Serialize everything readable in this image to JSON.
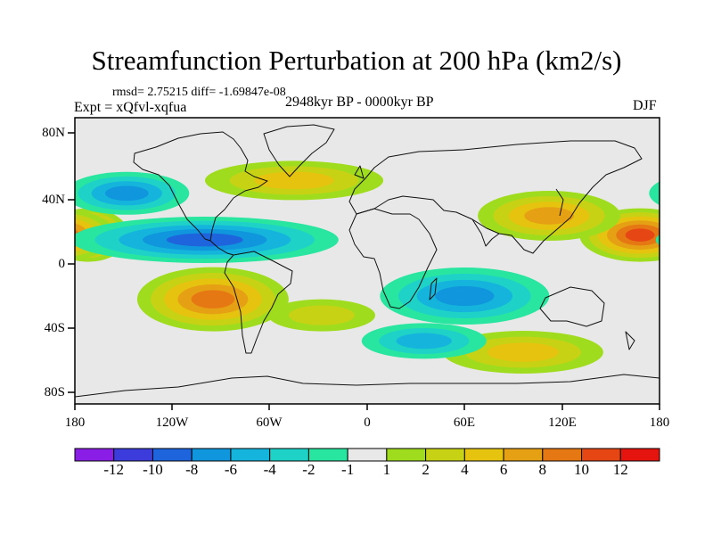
{
  "title": "Streamfunction Perturbation at 200 hPa (km2/s)",
  "stats_text": "rmsd= 2.75215 diff= -1.69847e-08",
  "experiment_label": "Expt = xQfvl-xqfua",
  "period_label": "2948kyr BP - 0000kyr BP",
  "season_label": "DJF",
  "axes": {
    "y_ticks": [
      "80N",
      "40N",
      "0",
      "40S",
      "80S"
    ],
    "x_ticks": [
      "180",
      "120W",
      "60W",
      "0",
      "60E",
      "120E",
      "180"
    ]
  },
  "colorbar": {
    "labels": [
      "-12",
      "-10",
      "-8",
      "-6",
      "-4",
      "-2",
      "-1",
      "1",
      "2",
      "4",
      "6",
      "8",
      "10",
      "12"
    ],
    "colors": [
      "#8a1ee6",
      "#3c3cdc",
      "#1e64dc",
      "#0f96dc",
      "#14b4dc",
      "#1ed2c8",
      "#28e6a0",
      "#e8e8e8",
      "#a0dc1e",
      "#c8d214",
      "#e6c30f",
      "#e6a014",
      "#e67814",
      "#e64614",
      "#e6140f"
    ]
  },
  "map_units": "km2/s",
  "anomaly_features": [
    {
      "id": "pac-east-pos",
      "lon": -172,
      "lat": 18,
      "value": 10
    },
    {
      "id": "pac-west-pos",
      "lon": 168,
      "lat": 18,
      "value": 10
    },
    {
      "id": "s-pac-pos",
      "lon": -95,
      "lat": -22,
      "value": 8
    },
    {
      "id": "nw-pac-pos",
      "lon": 112,
      "lat": 30,
      "value": 6
    },
    {
      "id": "n-atl-pos",
      "lon": -45,
      "lat": 52,
      "value": 4
    },
    {
      "id": "s-atl-pos",
      "lon": -28,
      "lat": -32,
      "value": 3
    },
    {
      "id": "s-ind-pos",
      "lon": 96,
      "lat": -55,
      "value": 4
    },
    {
      "id": "tropic-neg",
      "lon": -100,
      "lat": 15,
      "value": -8
    },
    {
      "id": "ne-pac-neg",
      "lon": -148,
      "lat": 44,
      "value": -6
    },
    {
      "id": "ind-neg",
      "lon": 60,
      "lat": -20,
      "value": -6
    },
    {
      "id": "s-ocean-neg",
      "lon": 35,
      "lat": -48,
      "value": -4
    }
  ]
}
